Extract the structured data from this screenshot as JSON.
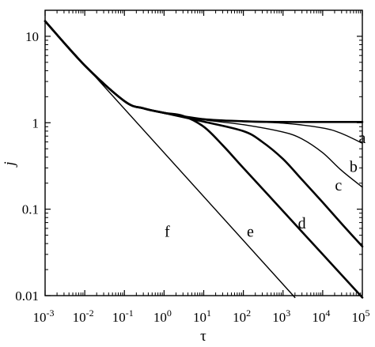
{
  "chart_data": {
    "type": "line",
    "title": "",
    "xlabel": "τ",
    "ylabel": "j",
    "x_scale": "log",
    "y_scale": "log",
    "xlim": [
      0.001,
      100000
    ],
    "ylim": [
      0.01,
      20
    ],
    "grid": false,
    "x_ticks": [
      {
        "value": 0.001,
        "base": "10",
        "exp": "-3"
      },
      {
        "value": 0.01,
        "base": "10",
        "exp": "-2"
      },
      {
        "value": 0.1,
        "base": "10",
        "exp": "-1"
      },
      {
        "value": 1,
        "base": "10",
        "exp": "0"
      },
      {
        "value": 10,
        "base": "10",
        "exp": "1"
      },
      {
        "value": 100,
        "base": "10",
        "exp": "2"
      },
      {
        "value": 1000,
        "base": "10",
        "exp": "3"
      },
      {
        "value": 10000,
        "base": "10",
        "exp": "4"
      },
      {
        "value": 100000,
        "base": "10",
        "exp": "5"
      }
    ],
    "y_ticks": [
      {
        "value": 0.01,
        "label": "0.01"
      },
      {
        "value": 0.1,
        "label": "0.1"
      },
      {
        "value": 1,
        "label": "1"
      },
      {
        "value": 10,
        "label": "10"
      }
    ],
    "series": [
      {
        "label": "a",
        "width": 2.6,
        "label_at": [
          100000,
          0.58
        ],
        "points": [
          [
            0.001,
            15
          ],
          [
            0.01,
            4.6
          ],
          [
            0.1,
            1.78
          ],
          [
            0.3,
            1.47
          ],
          [
            1,
            1.3
          ],
          [
            10,
            1.1
          ],
          [
            100,
            1.04
          ],
          [
            1000,
            1.02
          ],
          [
            10000,
            1.02
          ],
          [
            100000,
            1.02
          ]
        ]
      },
      {
        "label": "b",
        "width": 1.4,
        "label_at": [
          60000,
          0.27
        ],
        "points": [
          [
            0.001,
            15
          ],
          [
            0.01,
            4.6
          ],
          [
            0.1,
            1.78
          ],
          [
            0.3,
            1.47
          ],
          [
            1,
            1.3
          ],
          [
            10,
            1.1
          ],
          [
            100,
            1.03
          ],
          [
            1000,
            0.99
          ],
          [
            10000,
            0.87
          ],
          [
            30000,
            0.75
          ],
          [
            100000,
            0.58
          ]
        ]
      },
      {
        "label": "c",
        "width": 1.4,
        "label_at": [
          25000,
          0.165
        ],
        "points": [
          [
            0.001,
            15
          ],
          [
            0.01,
            4.6
          ],
          [
            0.1,
            1.78
          ],
          [
            0.3,
            1.47
          ],
          [
            1,
            1.3
          ],
          [
            10,
            1.08
          ],
          [
            100,
            0.95
          ],
          [
            1000,
            0.78
          ],
          [
            3000,
            0.65
          ],
          [
            10000,
            0.45
          ],
          [
            30000,
            0.28
          ],
          [
            100000,
            0.18
          ]
        ]
      },
      {
        "label": "d",
        "width": 2.6,
        "label_at": [
          3000,
          0.06
        ],
        "points": [
          [
            0.001,
            15
          ],
          [
            0.01,
            4.6
          ],
          [
            0.1,
            1.78
          ],
          [
            0.3,
            1.47
          ],
          [
            1,
            1.3
          ],
          [
            10,
            1.03
          ],
          [
            100,
            0.8
          ],
          [
            300,
            0.6
          ],
          [
            1000,
            0.38
          ],
          [
            3000,
            0.22
          ],
          [
            10000,
            0.12
          ],
          [
            30000,
            0.068
          ],
          [
            100000,
            0.037
          ]
        ]
      },
      {
        "label": "e",
        "width": 2.6,
        "label_at": [
          150,
          0.048
        ],
        "points": [
          [
            0.001,
            15
          ],
          [
            0.01,
            4.6
          ],
          [
            0.1,
            1.78
          ],
          [
            0.3,
            1.47
          ],
          [
            1,
            1.3
          ],
          [
            3,
            1.2
          ],
          [
            10,
            0.9
          ],
          [
            30,
            0.55
          ],
          [
            100,
            0.3
          ],
          [
            1000,
            0.095
          ],
          [
            10000,
            0.03
          ],
          [
            100000,
            0.0095
          ]
        ]
      },
      {
        "label": "f",
        "width": 1.4,
        "label_at": [
          1.2,
          0.048
        ],
        "points": [
          [
            0.001,
            15
          ],
          [
            2000,
            0.0095
          ]
        ]
      }
    ]
  }
}
